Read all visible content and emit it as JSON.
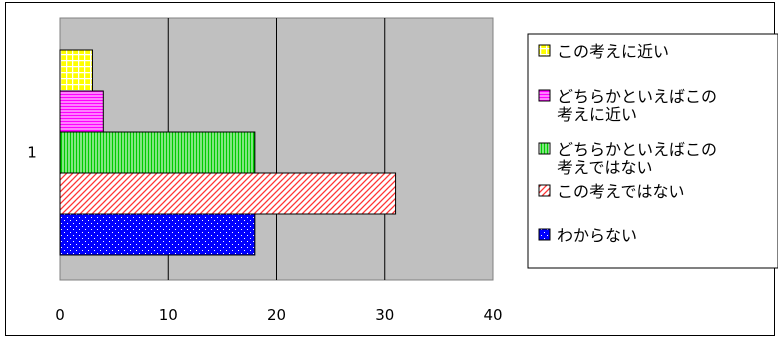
{
  "chart_data": {
    "type": "bar",
    "orientation": "horizontal",
    "categories": [
      "1"
    ],
    "series": [
      {
        "name": "この考えに近い",
        "values": [
          3
        ],
        "color": "#ffff00",
        "pattern": "grid"
      },
      {
        "name": "どちらかといえばこの考えに近い",
        "values": [
          4
        ],
        "color": "#ff00ff",
        "pattern": "horizontal-lines"
      },
      {
        "name": "どちらかといえばこの考えではない",
        "values": [
          18
        ],
        "color": "#00cc00",
        "pattern": "vertical-lines"
      },
      {
        "name": "この考えではない",
        "values": [
          31
        ],
        "color": "#ff3333",
        "pattern": "diagonal-lines"
      },
      {
        "name": "わからない",
        "values": [
          18
        ],
        "color": "#0000ff",
        "pattern": "dots"
      }
    ],
    "xlim": [
      0,
      40
    ],
    "x_ticks": [
      "0",
      "10",
      "20",
      "30",
      "40"
    ],
    "grid": "vertical",
    "plot_background": "#c0c0c0",
    "legend_position": "right",
    "legend_lines": [
      [
        "この考えに近い"
      ],
      [
        "どちらかといえばこの",
        "考えに近い"
      ],
      [
        "どちらかといえばこの",
        "考えではない"
      ],
      [
        "この考えではない"
      ],
      [
        "わからない"
      ]
    ]
  }
}
